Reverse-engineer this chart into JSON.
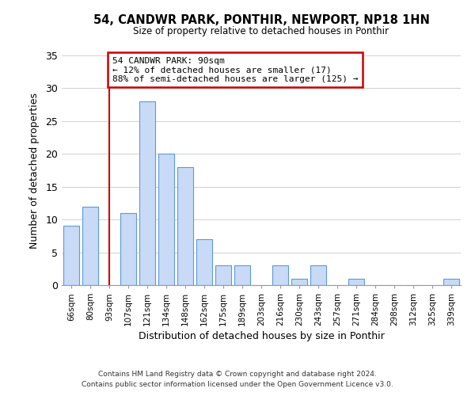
{
  "title": "54, CANDWR PARK, PONTHIR, NEWPORT, NP18 1HN",
  "subtitle": "Size of property relative to detached houses in Ponthir",
  "xlabel": "Distribution of detached houses by size in Ponthir",
  "ylabel": "Number of detached properties",
  "footer_lines": [
    "Contains HM Land Registry data © Crown copyright and database right 2024.",
    "Contains public sector information licensed under the Open Government Licence v3.0."
  ],
  "bar_labels": [
    "66sqm",
    "80sqm",
    "93sqm",
    "107sqm",
    "121sqm",
    "134sqm",
    "148sqm",
    "162sqm",
    "175sqm",
    "189sqm",
    "203sqm",
    "216sqm",
    "230sqm",
    "243sqm",
    "257sqm",
    "271sqm",
    "284sqm",
    "298sqm",
    "312sqm",
    "325sqm",
    "339sqm"
  ],
  "bar_values": [
    9,
    12,
    0,
    11,
    28,
    20,
    18,
    7,
    3,
    3,
    0,
    3,
    1,
    3,
    0,
    1,
    0,
    0,
    0,
    0,
    1
  ],
  "bar_color": "#c8daf5",
  "bar_edge_color": "#5b9bd5",
  "annotation_title": "54 CANDWR PARK: 90sqm",
  "annotation_line1": "← 12% of detached houses are smaller (17)",
  "annotation_line2": "88% of semi-detached houses are larger (125) →",
  "annotation_box_edge": "#cc0000",
  "marker_x_label": "93sqm",
  "marker_color": "#cc0000",
  "ylim": [
    0,
    35
  ],
  "yticks": [
    0,
    5,
    10,
    15,
    20,
    25,
    30,
    35
  ],
  "background_color": "#ffffff",
  "grid_color": "#d0d0d0"
}
